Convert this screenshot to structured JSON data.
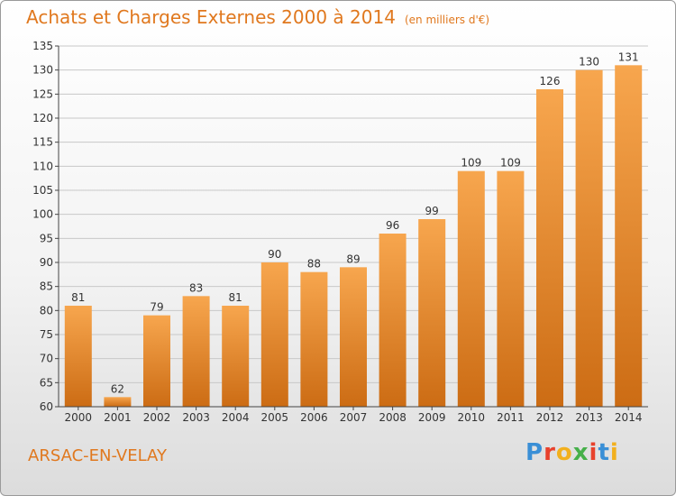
{
  "title": "Achats et Charges Externes 2000 à 2014",
  "unit": "(en milliers d'€)",
  "place": "ARSAC-EN-VELAY",
  "logo": {
    "text": "Proxiti",
    "colors": [
      "#3a8fd6",
      "#e8412c",
      "#f2b01e",
      "#46b04a",
      "#e8412c",
      "#3a8fd6",
      "#f2b01e"
    ]
  },
  "colors": {
    "text": "#e0781e",
    "bar_light": "#f7a64e",
    "bar_dark": "#cc6c14",
    "grid": "#c8c8c8",
    "axis": "#444444"
  },
  "chart_data": {
    "type": "bar",
    "categories": [
      "2000",
      "2001",
      "2002",
      "2003",
      "2004",
      "2005",
      "2006",
      "2007",
      "2008",
      "2009",
      "2010",
      "2011",
      "2012",
      "2013",
      "2014"
    ],
    "values": [
      81,
      62,
      79,
      83,
      81,
      90,
      88,
      89,
      96,
      99,
      109,
      109,
      126,
      130,
      131
    ],
    "yticks": [
      60,
      65,
      70,
      75,
      80,
      85,
      90,
      95,
      100,
      105,
      110,
      115,
      120,
      125,
      130,
      135
    ],
    "ylim": [
      60,
      135
    ],
    "grid": true,
    "data_labels": true
  }
}
